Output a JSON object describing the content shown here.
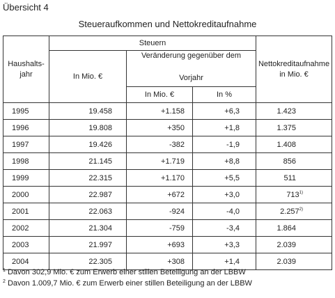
{
  "caption": "Übersicht 4",
  "title": "Steueraufkommen und Nettokreditaufnahme",
  "header": {
    "haushaltsjahr_line1": "Haushalts-",
    "haushaltsjahr_line2": "jahr",
    "steuern": "Steuern",
    "in_mio": "In Mio. €",
    "veraenderung_line1": "Veränderung gegenüber dem",
    "veraenderung_line2": "Vorjahr",
    "chg_in_mio": "In Mio. €",
    "chg_in_pct": "In %",
    "netto_line1": "Nettokreditaufnahme",
    "netto_line2": "in Mio. €"
  },
  "rows": [
    {
      "year": "1995",
      "mio": "19.458",
      "chg": "+1.158",
      "pct": "+6,3",
      "net": "1.423",
      "note": ""
    },
    {
      "year": "1996",
      "mio": "19.808",
      "chg": "+350",
      "pct": "+1,8",
      "net": "1.375",
      "note": ""
    },
    {
      "year": "1997",
      "mio": "19.426",
      "chg": "-382",
      "pct": "-1,9",
      "net": "1.408",
      "note": ""
    },
    {
      "year": "1998",
      "mio": "21.145",
      "chg": "+1.719",
      "pct": "+8,8",
      "net": "856",
      "note": ""
    },
    {
      "year": "1999",
      "mio": "22.315",
      "chg": "+1.170",
      "pct": "+5,5",
      "net": "511",
      "note": ""
    },
    {
      "year": "2000",
      "mio": "22.987",
      "chg": "+672",
      "pct": "+3,0",
      "net": "713",
      "note": "1)"
    },
    {
      "year": "2001",
      "mio": "22.063",
      "chg": "-924",
      "pct": "-4,0",
      "net": "2.257",
      "note": "2)"
    },
    {
      "year": "2002",
      "mio": "21.304",
      "chg": "-759",
      "pct": "-3,4",
      "net": "1.864",
      "note": ""
    },
    {
      "year": "2003",
      "mio": "21.997",
      "chg": "+693",
      "pct": "+3,3",
      "net": "2.039",
      "note": ""
    },
    {
      "year": "2004",
      "mio": "22.305",
      "chg": "+308",
      "pct": "+1,4",
      "net": "2.039",
      "note": ""
    }
  ],
  "footnotes": [
    {
      "mark": "1",
      "text": "Davon 302,9 Mio. € zum Erwerb einer stillen Beteiligung an der LBBW"
    },
    {
      "mark": "2",
      "text": "Davon 1.009,7 Mio. € zum Erwerb einer stillen Beteiligung an der LBBW"
    }
  ]
}
